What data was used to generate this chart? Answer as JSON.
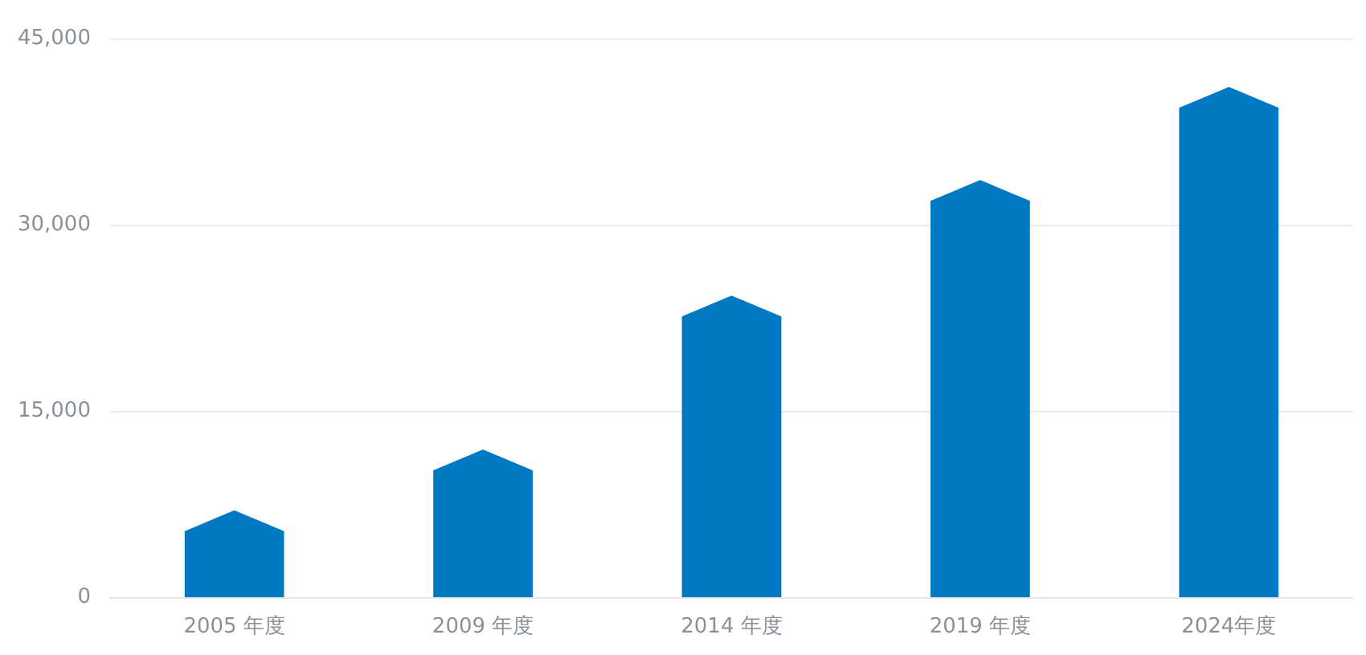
{
  "chart_data": {
    "type": "bar",
    "categories": [
      "2005 年度",
      "2009 年度",
      "2014 年度",
      "2019 年度",
      "2024年度"
    ],
    "values": [
      7000,
      11900,
      24300,
      33600,
      41100
    ],
    "color": "#0079c4",
    "ylim": [
      0,
      45000
    ],
    "yticks": [
      {
        "value": 0,
        "label": "0"
      },
      {
        "value": 15000,
        "label": "15,000"
      },
      {
        "value": 30000,
        "label": "30,000"
      },
      {
        "value": 45000,
        "label": "45,000"
      }
    ],
    "grid": "y"
  }
}
